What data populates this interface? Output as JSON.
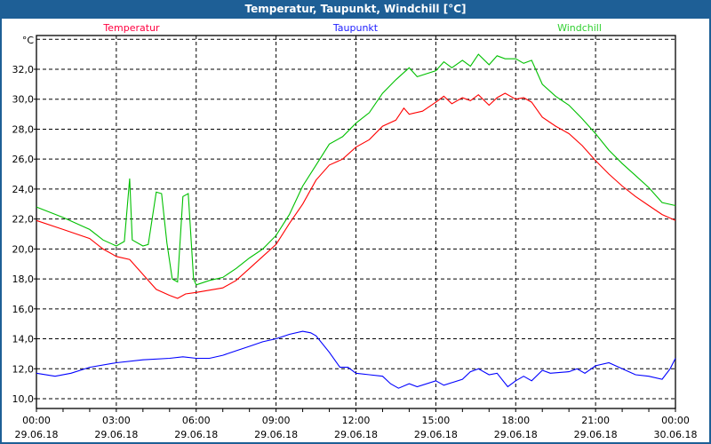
{
  "window": {
    "title": "Temperatur, Taupunkt, Windchill [°C]"
  },
  "chart_data": {
    "type": "line",
    "title": "Temperatur, Taupunkt, Windchill [°C]",
    "ylabel": "°C",
    "xlabel": "",
    "xlim": [
      0,
      24
    ],
    "ylim": [
      9.35,
      34.2
    ],
    "grid": true,
    "legend": "top",
    "yticks": [
      10,
      12,
      14,
      16,
      18,
      20,
      22,
      24,
      26,
      28,
      30,
      32
    ],
    "ytick_labels": [
      "10,0",
      "12,0",
      "14,0",
      "16,0",
      "18,0",
      "20,0",
      "22,0",
      "24,0",
      "26,0",
      "28,0",
      "30,0",
      "32,0"
    ],
    "xticks": [
      {
        "hour": 0,
        "time": "00:00",
        "date": "29.06.18"
      },
      {
        "hour": 3,
        "time": "03:00",
        "date": "29.06.18"
      },
      {
        "hour": 6,
        "time": "06:00",
        "date": "29.06.18"
      },
      {
        "hour": 9,
        "time": "09:00",
        "date": "29.06.18"
      },
      {
        "hour": 12,
        "time": "12:00",
        "date": "29.06.18"
      },
      {
        "hour": 15,
        "time": "15:00",
        "date": "29.06.18"
      },
      {
        "hour": 18,
        "time": "18:00",
        "date": "29.06.18"
      },
      {
        "hour": 21,
        "time": "21:00",
        "date": "29.06.18"
      },
      {
        "hour": 24,
        "time": "00:00",
        "date": "30.06.18"
      }
    ],
    "series": [
      {
        "name": "Temperatur",
        "color": "#ff0000",
        "legend_color": "#ff0040",
        "points": [
          [
            0,
            21.9
          ],
          [
            1,
            21.3
          ],
          [
            2,
            20.7
          ],
          [
            2.5,
            20.0
          ],
          [
            3,
            19.5
          ],
          [
            3.5,
            19.3
          ],
          [
            4,
            18.3
          ],
          [
            4.5,
            17.3
          ],
          [
            5,
            16.9
          ],
          [
            5.3,
            16.7
          ],
          [
            5.6,
            17.0
          ],
          [
            6,
            17.1
          ],
          [
            7,
            17.4
          ],
          [
            7.5,
            17.9
          ],
          [
            8,
            18.7
          ],
          [
            8.5,
            19.5
          ],
          [
            9,
            20.3
          ],
          [
            9.5,
            21.7
          ],
          [
            10,
            23.0
          ],
          [
            10.5,
            24.6
          ],
          [
            11,
            25.6
          ],
          [
            11.5,
            26.0
          ],
          [
            12,
            26.8
          ],
          [
            12.5,
            27.3
          ],
          [
            13,
            28.2
          ],
          [
            13.5,
            28.6
          ],
          [
            13.8,
            29.4
          ],
          [
            14,
            29.0
          ],
          [
            14.5,
            29.2
          ],
          [
            15,
            29.8
          ],
          [
            15.3,
            30.2
          ],
          [
            15.6,
            29.7
          ],
          [
            16,
            30.1
          ],
          [
            16.3,
            29.9
          ],
          [
            16.6,
            30.3
          ],
          [
            17,
            29.6
          ],
          [
            17.3,
            30.1
          ],
          [
            17.6,
            30.4
          ],
          [
            18,
            30.0
          ],
          [
            18.3,
            30.1
          ],
          [
            18.6,
            29.8
          ],
          [
            19,
            28.8
          ],
          [
            19.5,
            28.2
          ],
          [
            20,
            27.7
          ],
          [
            20.5,
            26.9
          ],
          [
            21,
            25.9
          ],
          [
            21.5,
            25.0
          ],
          [
            22,
            24.2
          ],
          [
            22.5,
            23.5
          ],
          [
            23,
            22.9
          ],
          [
            23.5,
            22.3
          ],
          [
            24,
            21.9
          ]
        ]
      },
      {
        "name": "Taupunkt",
        "color": "#0000ff",
        "legend_color": "#2020ff",
        "points": [
          [
            0,
            11.7
          ],
          [
            0.7,
            11.5
          ],
          [
            1.3,
            11.7
          ],
          [
            2,
            12.1
          ],
          [
            3,
            12.4
          ],
          [
            4,
            12.6
          ],
          [
            5,
            12.7
          ],
          [
            5.5,
            12.8
          ],
          [
            6,
            12.7
          ],
          [
            6.5,
            12.7
          ],
          [
            7,
            12.9
          ],
          [
            7.5,
            13.2
          ],
          [
            8,
            13.5
          ],
          [
            8.5,
            13.8
          ],
          [
            9,
            14.0
          ],
          [
            9.5,
            14.3
          ],
          [
            10,
            14.5
          ],
          [
            10.3,
            14.4
          ],
          [
            10.5,
            14.2
          ],
          [
            11,
            13.1
          ],
          [
            11.4,
            12.1
          ],
          [
            11.7,
            12.1
          ],
          [
            12,
            11.7
          ],
          [
            12.5,
            11.6
          ],
          [
            13,
            11.5
          ],
          [
            13.3,
            11.0
          ],
          [
            13.6,
            10.7
          ],
          [
            14,
            11.0
          ],
          [
            14.3,
            10.8
          ],
          [
            15,
            11.2
          ],
          [
            15.3,
            10.9
          ],
          [
            16,
            11.3
          ],
          [
            16.3,
            11.8
          ],
          [
            16.6,
            12.0
          ],
          [
            17,
            11.6
          ],
          [
            17.3,
            11.7
          ],
          [
            17.7,
            10.8
          ],
          [
            18,
            11.2
          ],
          [
            18.3,
            11.5
          ],
          [
            18.6,
            11.2
          ],
          [
            19,
            11.9
          ],
          [
            19.3,
            11.7
          ],
          [
            20,
            11.8
          ],
          [
            20.3,
            12.0
          ],
          [
            20.6,
            11.7
          ],
          [
            21,
            12.2
          ],
          [
            21.5,
            12.4
          ],
          [
            22,
            12.0
          ],
          [
            22.5,
            11.6
          ],
          [
            23,
            11.5
          ],
          [
            23.5,
            11.3
          ],
          [
            23.8,
            12.0
          ],
          [
            24,
            12.7
          ]
        ]
      },
      {
        "name": "Windchill",
        "color": "#00c000",
        "legend_color": "#30d030",
        "points": [
          [
            0,
            22.8
          ],
          [
            1,
            22.1
          ],
          [
            2,
            21.3
          ],
          [
            2.5,
            20.6
          ],
          [
            3,
            20.2
          ],
          [
            3.3,
            20.5
          ],
          [
            3.5,
            24.7
          ],
          [
            3.6,
            20.6
          ],
          [
            4,
            20.2
          ],
          [
            4.2,
            20.3
          ],
          [
            4.5,
            23.8
          ],
          [
            4.7,
            23.7
          ],
          [
            4.9,
            20.4
          ],
          [
            5.1,
            18.0
          ],
          [
            5.3,
            17.8
          ],
          [
            5.5,
            23.5
          ],
          [
            5.7,
            23.7
          ],
          [
            5.9,
            18.0
          ],
          [
            6,
            17.6
          ],
          [
            6.5,
            17.9
          ],
          [
            7,
            18.1
          ],
          [
            7.5,
            18.7
          ],
          [
            8,
            19.4
          ],
          [
            8.5,
            20.0
          ],
          [
            9,
            20.9
          ],
          [
            9.5,
            22.3
          ],
          [
            10,
            24.2
          ],
          [
            10.5,
            25.6
          ],
          [
            11,
            27.0
          ],
          [
            11.5,
            27.5
          ],
          [
            12,
            28.4
          ],
          [
            12.5,
            29.1
          ],
          [
            13,
            30.4
          ],
          [
            13.5,
            31.3
          ],
          [
            14,
            32.1
          ],
          [
            14.3,
            31.5
          ],
          [
            15,
            31.9
          ],
          [
            15.3,
            32.5
          ],
          [
            15.6,
            32.1
          ],
          [
            16,
            32.6
          ],
          [
            16.3,
            32.2
          ],
          [
            16.6,
            33.0
          ],
          [
            17,
            32.3
          ],
          [
            17.3,
            32.9
          ],
          [
            17.6,
            32.7
          ],
          [
            18,
            32.7
          ],
          [
            18.3,
            32.4
          ],
          [
            18.6,
            32.6
          ],
          [
            19,
            31.0
          ],
          [
            19.5,
            30.2
          ],
          [
            20,
            29.6
          ],
          [
            20.5,
            28.7
          ],
          [
            21,
            27.7
          ],
          [
            21.5,
            26.6
          ],
          [
            22,
            25.7
          ],
          [
            22.5,
            24.9
          ],
          [
            23,
            24.1
          ],
          [
            23.5,
            23.1
          ],
          [
            24,
            22.9
          ]
        ]
      }
    ]
  }
}
